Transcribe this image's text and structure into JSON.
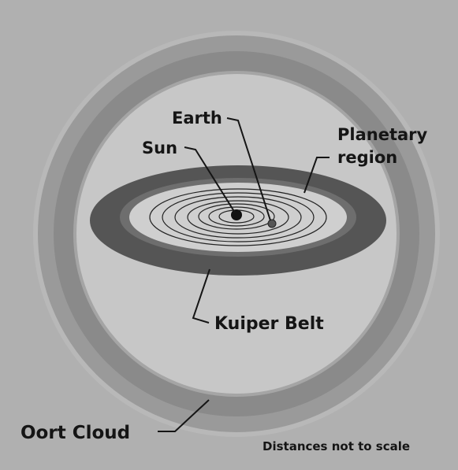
{
  "labels": {
    "earth": "Earth",
    "sun": "Sun",
    "planetary_region": [
      "Planetary",
      "region"
    ],
    "kuiper_belt": "Kuiper Belt",
    "oort_cloud": "Oort Cloud"
  },
  "note": "Distances not to scale"
}
